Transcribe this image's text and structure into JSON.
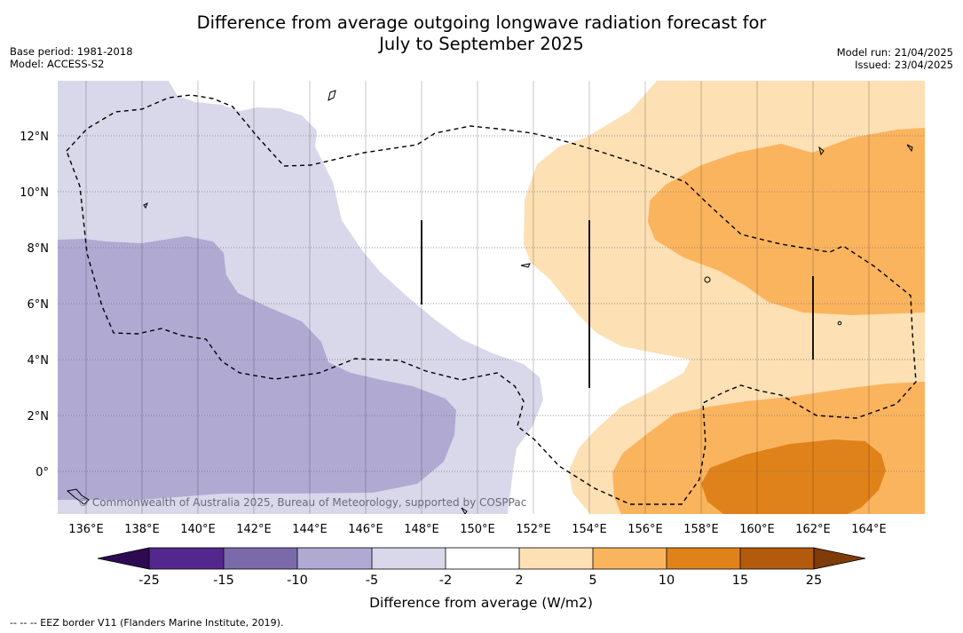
{
  "title_line1": "Difference from average outgoing longwave radiation forecast for",
  "title_line2": "July to September 2025",
  "base_period": "Base period: 1981-2018",
  "model": "Model: ACCESS-S2",
  "model_run": "Model run: 21/04/2025",
  "issued": "Issued: 23/04/2025",
  "copyright": "© Commonwealth of Australia 2025, Bureau of Meteorology, supported by COSPPac",
  "lon_labels": [
    "136°E",
    "138°E",
    "140°E",
    "142°E",
    "144°E",
    "146°E",
    "148°E",
    "150°E",
    "152°E",
    "154°E",
    "156°E",
    "158°E",
    "160°E",
    "162°E",
    "164°E"
  ],
  "lat_labels": [
    "12°N",
    "10°N",
    "8°N",
    "6°N",
    "4°N",
    "2°N",
    "0°"
  ],
  "colorbar": {
    "label": "Difference from average (W/m2)",
    "ticks": [
      "-25",
      "-15",
      "-10",
      "-5",
      "-2",
      "2",
      "5",
      "10",
      "15",
      "25"
    ],
    "colors": {
      "below_min": "#2d0a52",
      "c1": "#54278f",
      "c2": "#7b6aaa",
      "c3": "#b0aad3",
      "c4": "#d8d8ea",
      "c5": "#ffffff",
      "c6": "#fde0b4",
      "c7": "#fbb45e",
      "c8": "#e0821a",
      "c9": "#b35a0c",
      "above_max": "#7f3b08"
    }
  },
  "legend_note": "--  --  -- EEZ border V11 (Flanders Marine Institute, 2019)."
}
